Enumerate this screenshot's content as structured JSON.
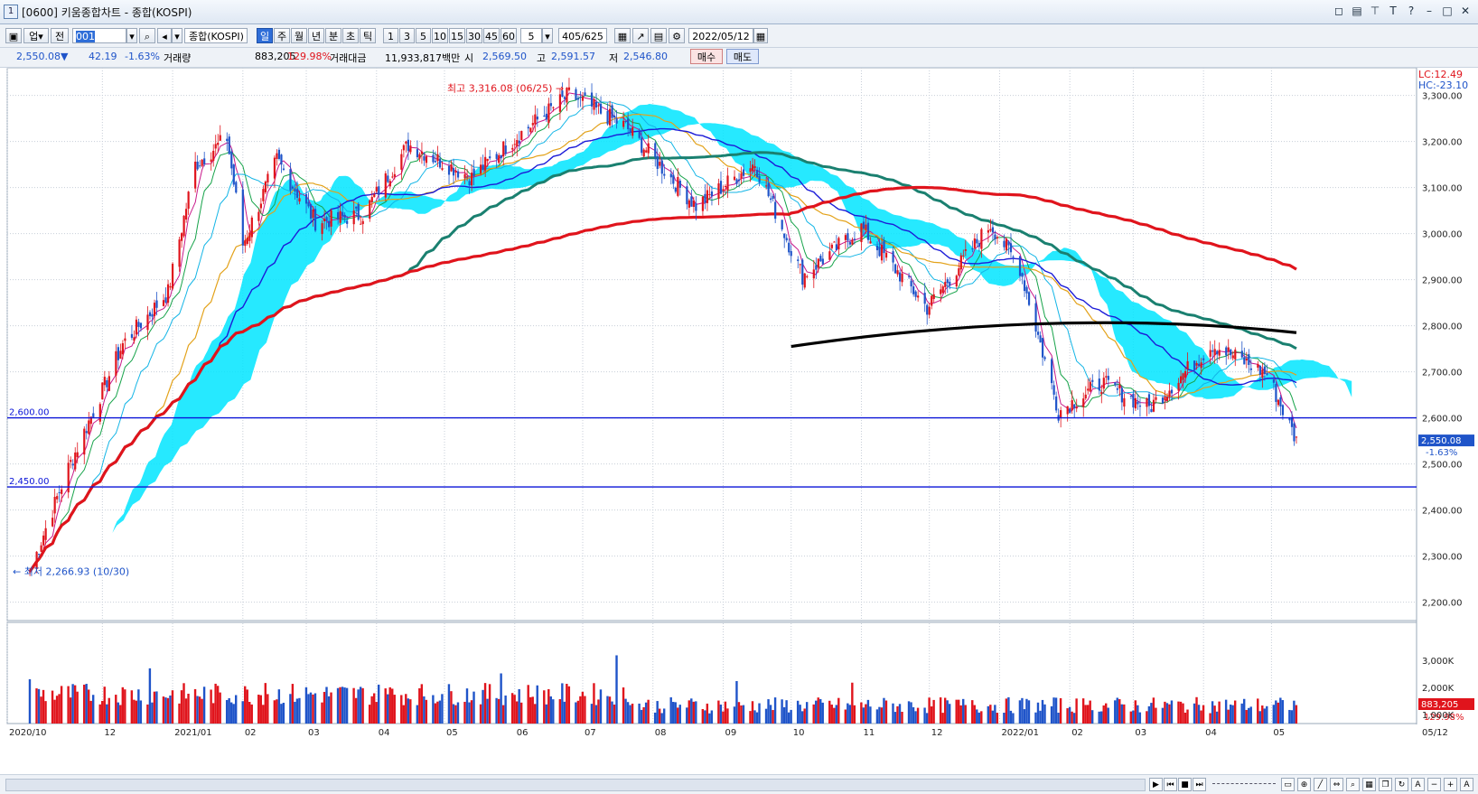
{
  "window": {
    "tag": "1",
    "title": "[0600] 키움종합차트 - 종합(KOSPI)"
  },
  "toolbar": {
    "market": "업",
    "scope": "전",
    "code": "001",
    "name": "종합(KOSPI)",
    "periods": [
      "일",
      "주",
      "월",
      "년",
      "분",
      "초",
      "틱"
    ],
    "selected_period": "일",
    "intervals": [
      "1",
      "3",
      "5",
      "10",
      "15",
      "30",
      "45",
      "60"
    ],
    "interval_value": "5",
    "count": "405/625",
    "date": "2022/05/12"
  },
  "info": {
    "price": "2,550.08▼",
    "change": "42.19",
    "change_pct": "-1.63%",
    "vol_label": "거래량",
    "volume": "883,205",
    "volume_pct": "129.98%",
    "amt_label": "거래대금",
    "amount": "11,933,817백만",
    "open_label": "시",
    "open": "2,569.50",
    "high_label": "고",
    "high": "2,591.57",
    "low_label": "저",
    "low": "2,546.80",
    "buy": "매수",
    "sell": "매도"
  },
  "colors": {
    "up": "#e0141c",
    "down": "#1f54c9",
    "cloud": "#00e5ff",
    "ma_long": "#e0141c",
    "ma_mid": "#1a8070"
  },
  "chart_data": {
    "type": "candlestick",
    "title": "종합(KOSPI)",
    "x_ticks": [
      "2020/10",
      "12",
      "2021/01",
      "02",
      "03",
      "04",
      "05",
      "06",
      "07",
      "08",
      "09",
      "10",
      "11",
      "12",
      "2022/01",
      "02",
      "03",
      "04",
      "05"
    ],
    "x_end_label": "05/12",
    "y_ticks": [
      "2,200.00",
      "2,300.00",
      "2,400.00",
      "2,500.00",
      "2,600.00",
      "2,700.00",
      "2,800.00",
      "2,900.00",
      "3,000.00",
      "3,100.00",
      "3,200.00",
      "3,300.00"
    ],
    "ylim": [
      2160,
      3360
    ],
    "volume_ticks": [
      "1,000K",
      "2,000K",
      "3,000K"
    ],
    "series": [
      {
        "name": "KOSPI close (approx.)",
        "values": [
          [
            "2020-10-30",
            2267
          ],
          [
            "2020-11-15",
            2480
          ],
          [
            "2020-12-10",
            2760
          ],
          [
            "2020-12-30",
            2873
          ],
          [
            "2021-01-11",
            3150
          ],
          [
            "2021-01-25",
            3208
          ],
          [
            "2021-02-01",
            2976
          ],
          [
            "2021-02-16",
            3160
          ],
          [
            "2021-03-05",
            3026
          ],
          [
            "2021-03-26",
            3041
          ],
          [
            "2021-04-15",
            3194
          ],
          [
            "2021-05-13",
            3122
          ],
          [
            "2021-05-31",
            3203
          ],
          [
            "2021-06-25",
            3302
          ],
          [
            "2021-07-20",
            3232
          ],
          [
            "2021-08-20",
            3060
          ],
          [
            "2021-09-15",
            3153
          ],
          [
            "2021-10-06",
            2908
          ],
          [
            "2021-11-01",
            3013
          ],
          [
            "2021-11-30",
            2839
          ],
          [
            "2021-12-28",
            3020
          ],
          [
            "2022-01-10",
            2926
          ],
          [
            "2022-01-27",
            2614
          ],
          [
            "2022-02-15",
            2676
          ],
          [
            "2022-03-08",
            2622
          ],
          [
            "2022-04-05",
            2759
          ],
          [
            "2022-04-29",
            2695
          ],
          [
            "2022-05-12",
            2550
          ]
        ]
      }
    ],
    "lines": [
      {
        "name": "support-2600",
        "value": 2600,
        "label": "2,600.00"
      },
      {
        "name": "support-2450",
        "value": 2450,
        "label": "2,450.00"
      }
    ],
    "annotations": {
      "high": "최고 3,316.08 (06/25)",
      "low": "최저 2,266.93 (10/30)"
    },
    "last_price": "2,550.08",
    "last_pct": "-1.63%",
    "lc": "LC:12.49",
    "hc": "HC:-23.10",
    "last_volume": "883,205",
    "last_volume_pct": "129.98%"
  }
}
